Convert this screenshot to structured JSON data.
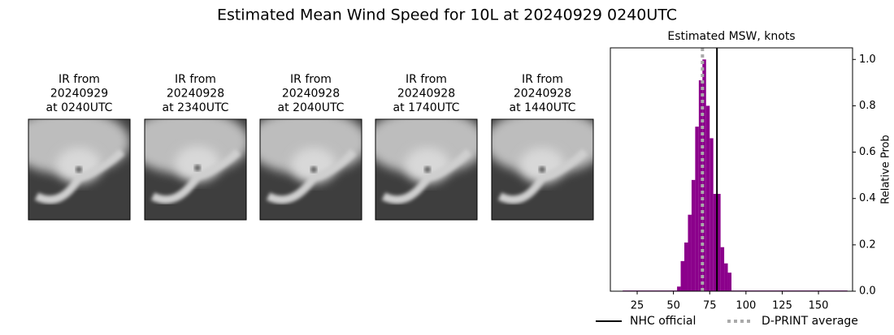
{
  "title": "Estimated Mean Wind Speed for 10L at 20240929 0240UTC",
  "panels": [
    {
      "lines": [
        "IR from",
        "20240929",
        "at 0240UTC"
      ]
    },
    {
      "lines": [
        "IR from",
        "20240928",
        "at 2340UTC"
      ]
    },
    {
      "lines": [
        "IR from",
        "20240928",
        "at 2040UTC"
      ]
    },
    {
      "lines": [
        "IR from",
        "20240928",
        "at 1740UTC"
      ]
    },
    {
      "lines": [
        "IR from",
        "20240928",
        "at 1440UTC"
      ]
    }
  ],
  "chart_data": {
    "type": "histogram",
    "title": "Estimated MSW, knots",
    "y_label": "Relative Prob",
    "bins": [
      15,
      52.5,
      55,
      57.5,
      60,
      62.5,
      65,
      67.5,
      70,
      72.5,
      75,
      77.5,
      80,
      82.5,
      85,
      87.5,
      90,
      170
    ],
    "values": [
      0.003,
      0.02,
      0.13,
      0.21,
      0.33,
      0.48,
      0.71,
      0.91,
      1.0,
      0.8,
      0.66,
      0.42,
      0.42,
      0.19,
      0.12,
      0.08,
      0.003
    ],
    "color": "#8b008b",
    "xlim": [
      6.5,
      173.5
    ],
    "ylim": [
      0,
      1.05
    ],
    "xticks": [
      25,
      50,
      75,
      100,
      125,
      150
    ],
    "yticks": [
      {
        "value": 0,
        "label": "0.0"
      },
      0.2,
      0.4,
      0.6,
      0.8,
      {
        "value": 1,
        "label": "1.0"
      }
    ],
    "lines": [
      {
        "name": "NHC official",
        "value": 80,
        "color": "#000000",
        "style": "solid"
      },
      {
        "name": "D-PRINT average",
        "value": 70,
        "color": "#aaaaaa",
        "style": "dotted"
      }
    ]
  }
}
